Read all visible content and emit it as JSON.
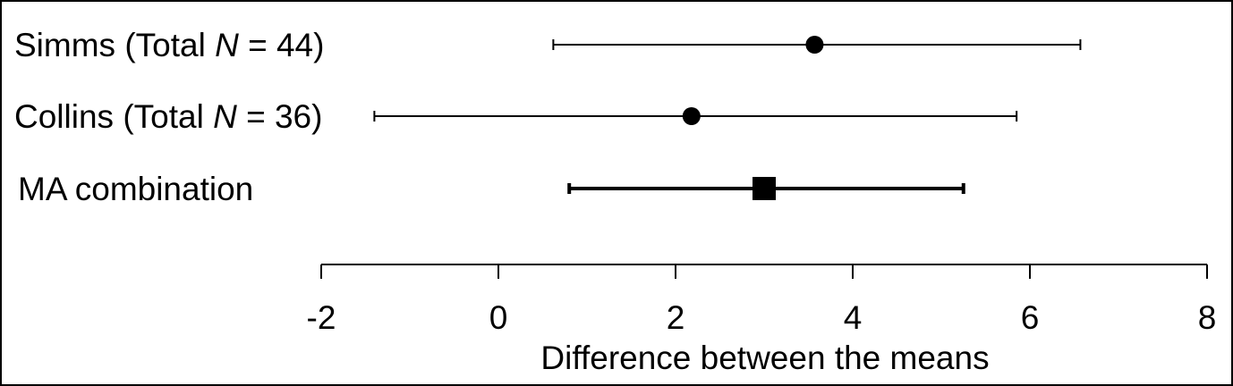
{
  "chart_data": {
    "type": "forest",
    "xlabel": "Difference between the means",
    "xlim": [
      -2,
      8
    ],
    "xticks": [
      -2,
      0,
      2,
      4,
      6,
      8
    ],
    "grid": false,
    "rows": [
      {
        "label_prefix": "Simms (Total ",
        "label_italic": "N",
        "label_suffix": " = 44)",
        "estimate": 3.57,
        "ci_low": 0.62,
        "ci_high": 6.57,
        "marker": "circle",
        "bold_line": false
      },
      {
        "label_prefix": "Collins (Total ",
        "label_italic": "N",
        "label_suffix": " = 36)",
        "estimate": 2.18,
        "ci_low": -1.4,
        "ci_high": 5.85,
        "marker": "circle",
        "bold_line": false
      },
      {
        "label_prefix": "MA combination",
        "label_italic": "",
        "label_suffix": "",
        "estimate": 3.0,
        "ci_low": 0.8,
        "ci_high": 5.25,
        "marker": "square",
        "bold_line": true
      }
    ]
  }
}
